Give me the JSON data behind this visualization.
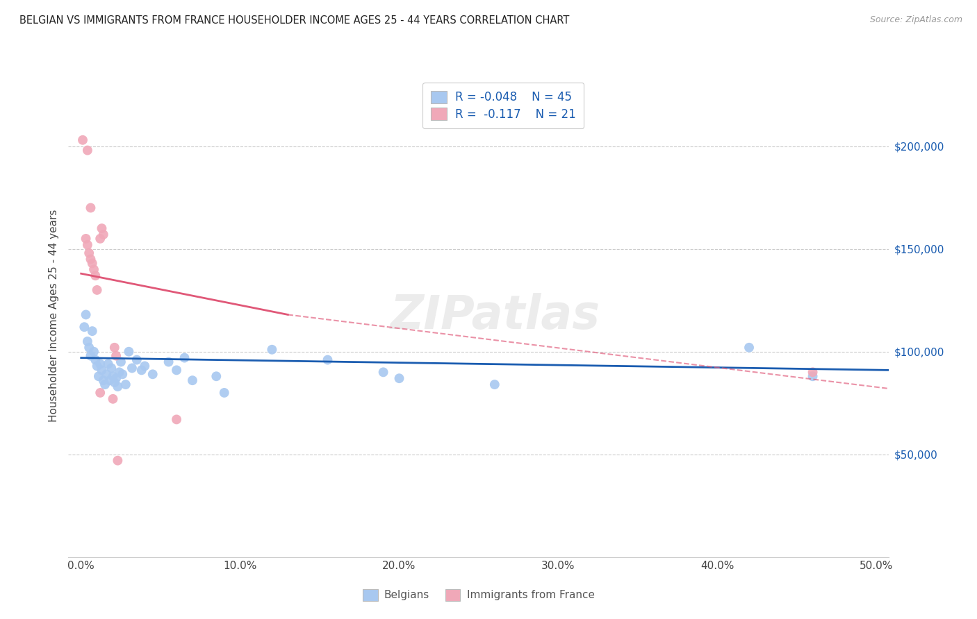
{
  "title": "BELGIAN VS IMMIGRANTS FROM FRANCE HOUSEHOLDER INCOME AGES 25 - 44 YEARS CORRELATION CHART",
  "source": "Source: ZipAtlas.com",
  "ylabel": "Householder Income Ages 25 - 44 years",
  "xlabel_ticks": [
    "0.0%",
    "10.0%",
    "20.0%",
    "30.0%",
    "40.0%",
    "50.0%"
  ],
  "xlabel_vals": [
    0.0,
    0.1,
    0.2,
    0.3,
    0.4,
    0.5
  ],
  "ytick_labels": [
    "$50,000",
    "$100,000",
    "$150,000",
    "$200,000"
  ],
  "ytick_vals": [
    50000,
    100000,
    150000,
    200000
  ],
  "ylim": [
    0,
    235000
  ],
  "xlim": [
    -0.008,
    0.508
  ],
  "legend_blue_r": "-0.048",
  "legend_blue_n": "45",
  "legend_pink_r": "-0.117",
  "legend_pink_n": "21",
  "legend_label_blue": "Belgians",
  "legend_label_pink": "Immigrants from France",
  "blue_color": "#a8c8f0",
  "pink_color": "#f0a8b8",
  "blue_line_color": "#1a5cb0",
  "pink_line_color": "#e05878",
  "blue_points": [
    [
      0.002,
      112000
    ],
    [
      0.003,
      118000
    ],
    [
      0.004,
      105000
    ],
    [
      0.005,
      102000
    ],
    [
      0.006,
      98000
    ],
    [
      0.007,
      110000
    ],
    [
      0.008,
      100000
    ],
    [
      0.009,
      96000
    ],
    [
      0.01,
      93000
    ],
    [
      0.011,
      88000
    ],
    [
      0.012,
      94000
    ],
    [
      0.013,
      91000
    ],
    [
      0.014,
      86000
    ],
    [
      0.015,
      84000
    ],
    [
      0.016,
      89000
    ],
    [
      0.017,
      94000
    ],
    [
      0.018,
      86000
    ],
    [
      0.019,
      92000
    ],
    [
      0.02,
      88000
    ],
    [
      0.021,
      85000
    ],
    [
      0.022,
      87000
    ],
    [
      0.023,
      83000
    ],
    [
      0.024,
      90000
    ],
    [
      0.025,
      95000
    ],
    [
      0.026,
      89000
    ],
    [
      0.028,
      84000
    ],
    [
      0.03,
      100000
    ],
    [
      0.032,
      92000
    ],
    [
      0.035,
      96000
    ],
    [
      0.038,
      91000
    ],
    [
      0.04,
      93000
    ],
    [
      0.045,
      89000
    ],
    [
      0.055,
      95000
    ],
    [
      0.06,
      91000
    ],
    [
      0.065,
      97000
    ],
    [
      0.07,
      86000
    ],
    [
      0.085,
      88000
    ],
    [
      0.09,
      80000
    ],
    [
      0.12,
      101000
    ],
    [
      0.155,
      96000
    ],
    [
      0.19,
      90000
    ],
    [
      0.2,
      87000
    ],
    [
      0.26,
      84000
    ],
    [
      0.42,
      102000
    ],
    [
      0.46,
      88000
    ]
  ],
  "pink_points": [
    [
      0.001,
      203000
    ],
    [
      0.004,
      198000
    ],
    [
      0.006,
      170000
    ],
    [
      0.003,
      155000
    ],
    [
      0.004,
      152000
    ],
    [
      0.005,
      148000
    ],
    [
      0.006,
      145000
    ],
    [
      0.007,
      143000
    ],
    [
      0.008,
      140000
    ],
    [
      0.009,
      137000
    ],
    [
      0.01,
      130000
    ],
    [
      0.012,
      155000
    ],
    [
      0.013,
      160000
    ],
    [
      0.014,
      157000
    ],
    [
      0.012,
      80000
    ],
    [
      0.02,
      77000
    ],
    [
      0.023,
      47000
    ],
    [
      0.022,
      98000
    ],
    [
      0.021,
      102000
    ],
    [
      0.06,
      67000
    ],
    [
      0.46,
      90000
    ]
  ],
  "blue_trendline": [
    [
      0.0,
      97000
    ],
    [
      0.508,
      91000
    ]
  ],
  "pink_trendline_solid": [
    [
      0.0,
      138000
    ],
    [
      0.13,
      118000
    ]
  ],
  "pink_trendline_dashed": [
    [
      0.13,
      118000
    ],
    [
      0.508,
      82000
    ]
  ]
}
